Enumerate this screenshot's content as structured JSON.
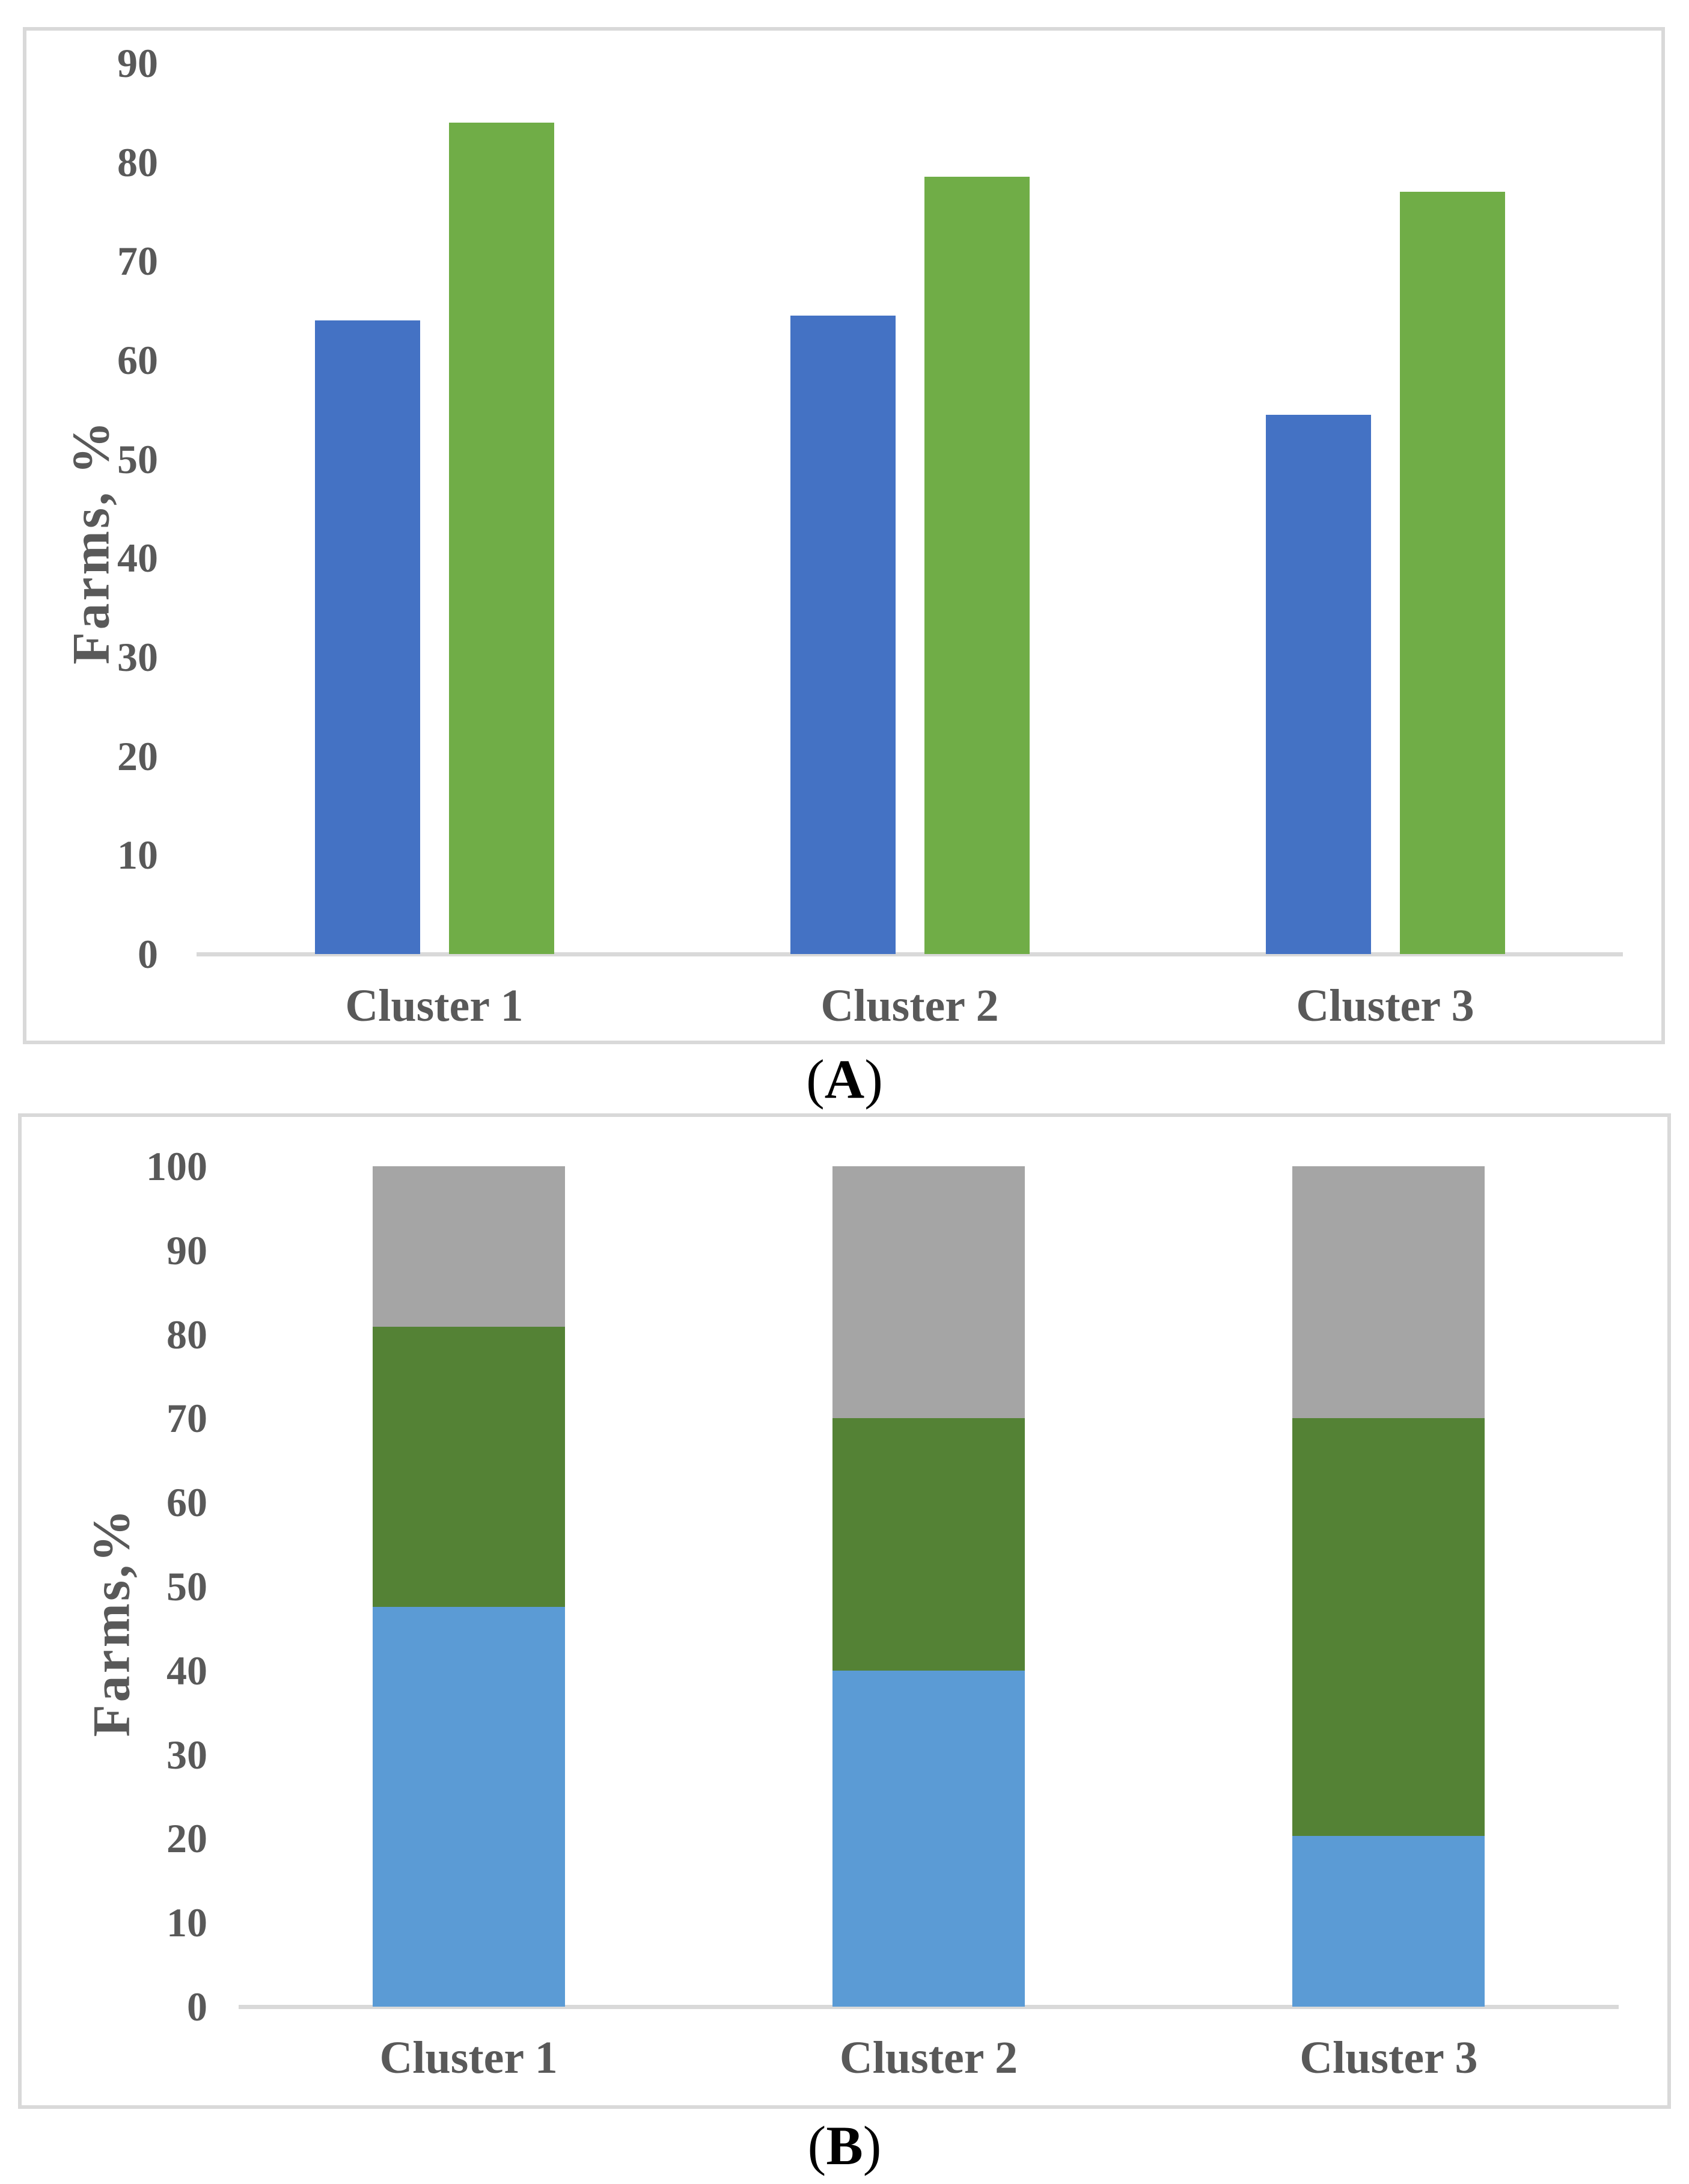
{
  "figure": {
    "background": "#ffffff",
    "captions": {
      "a": {
        "open": "(",
        "letter": "A",
        "close": ")"
      },
      "b": {
        "open": "(",
        "letter": "B",
        "close": ")"
      }
    },
    "text_color": "#595959",
    "caption_color": "#000000",
    "axis_line_color": "#D9D9D9",
    "panel_border_color": "#D9D9D9"
  },
  "chart_data": [
    {
      "type": "bar",
      "panel": "A",
      "title": "",
      "xlabel": "",
      "ylabel": "Farms, %",
      "ylim": [
        0,
        90
      ],
      "yticks": [
        0,
        10,
        20,
        30,
        40,
        50,
        60,
        70,
        80,
        90
      ],
      "grid": false,
      "legend": "none",
      "categories": [
        "Cluster 1",
        "Cluster 2",
        "Cluster 3"
      ],
      "series": [
        {
          "name": "blue",
          "color": "#4472C4",
          "values": [
            64,
            64.5,
            54.5
          ]
        },
        {
          "name": "green",
          "color": "#70AD47",
          "values": [
            84,
            78.5,
            77
          ]
        }
      ]
    },
    {
      "type": "stacked-bar",
      "panel": "B",
      "title": "",
      "xlabel": "",
      "ylabel": "Farms,%",
      "ylim": [
        0,
        100
      ],
      "yticks": [
        0,
        10,
        20,
        30,
        40,
        50,
        60,
        70,
        80,
        90,
        100
      ],
      "grid": false,
      "legend": "none",
      "categories": [
        "Cluster 1",
        "Cluster 2",
        "Cluster 3"
      ],
      "series": [
        {
          "name": "blue",
          "color": "#5B9BD5",
          "values": [
            47.6,
            40,
            20.3
          ]
        },
        {
          "name": "green",
          "color": "#548235",
          "values": [
            33.3,
            30,
            49.7
          ]
        },
        {
          "name": "gray",
          "color": "#A5A5A5",
          "values": [
            19.1,
            30,
            30
          ]
        }
      ]
    }
  ]
}
